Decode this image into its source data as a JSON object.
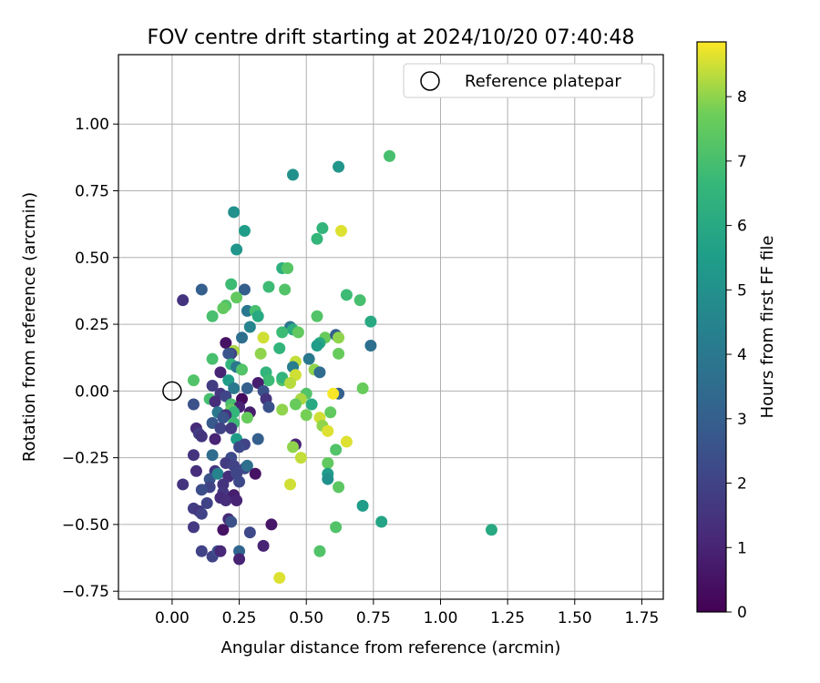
{
  "chart_data": {
    "type": "scatter",
    "title": "FOV centre drift starting at 2024/10/20 07:40:48",
    "xlabel": "Angular distance from reference (arcmin)",
    "ylabel": "Rotation from reference (arcmin)",
    "xlim": [
      -0.2,
      1.83
    ],
    "ylim": [
      -0.78,
      1.26
    ],
    "xticks": [
      0.0,
      0.25,
      0.5,
      0.75,
      1.0,
      1.25,
      1.5,
      1.75
    ],
    "xtick_labels": [
      "0.00",
      "0.25",
      "0.50",
      "0.75",
      "1.00",
      "1.25",
      "1.50",
      "1.75"
    ],
    "yticks": [
      -0.75,
      -0.5,
      -0.25,
      0.0,
      0.25,
      0.5,
      0.75,
      1.0
    ],
    "ytick_labels": [
      "−0.75",
      "−0.50",
      "−0.25",
      "0.00",
      "0.25",
      "0.50",
      "0.75",
      "1.00"
    ],
    "grid": true,
    "legend_position": "top-right",
    "legend_label": "Reference platepar",
    "reference_point": {
      "x": 0.0,
      "y": 0.0
    },
    "colorbar": {
      "label": "Hours from first FF file",
      "colormap": "viridis",
      "range": [
        0,
        8.85
      ],
      "ticks": [
        0,
        1,
        2,
        3,
        4,
        5,
        6,
        7,
        8
      ],
      "tick_labels": [
        "0",
        "1",
        "2",
        "3",
        "4",
        "5",
        "6",
        "7",
        "8"
      ]
    },
    "points": [
      {
        "x": 0.04,
        "y": 0.34,
        "c": 1.5
      },
      {
        "x": 0.11,
        "y": 0.38,
        "c": 3.0
      },
      {
        "x": 0.23,
        "y": 0.67,
        "c": 5.0
      },
      {
        "x": 0.27,
        "y": 0.6,
        "c": 5.5
      },
      {
        "x": 0.24,
        "y": 0.53,
        "c": 5.2
      },
      {
        "x": 0.45,
        "y": 0.81,
        "c": 5.0
      },
      {
        "x": 0.62,
        "y": 0.84,
        "c": 5.2
      },
      {
        "x": 0.81,
        "y": 0.88,
        "c": 7.0
      },
      {
        "x": 0.56,
        "y": 0.61,
        "c": 6.5
      },
      {
        "x": 0.63,
        "y": 0.6,
        "c": 8.6
      },
      {
        "x": 0.54,
        "y": 0.57,
        "c": 6.6
      },
      {
        "x": 0.41,
        "y": 0.46,
        "c": 6.3
      },
      {
        "x": 0.43,
        "y": 0.46,
        "c": 7.3
      },
      {
        "x": 0.22,
        "y": 0.4,
        "c": 6.8
      },
      {
        "x": 0.27,
        "y": 0.38,
        "c": 3.0
      },
      {
        "x": 0.36,
        "y": 0.39,
        "c": 6.8
      },
      {
        "x": 0.42,
        "y": 0.38,
        "c": 7.2
      },
      {
        "x": 0.65,
        "y": 0.36,
        "c": 6.8
      },
      {
        "x": 0.7,
        "y": 0.34,
        "c": 7.0
      },
      {
        "x": 0.24,
        "y": 0.35,
        "c": 7.5
      },
      {
        "x": 0.2,
        "y": 0.32,
        "c": 7.2
      },
      {
        "x": 0.19,
        "y": 0.31,
        "c": 7.5
      },
      {
        "x": 0.28,
        "y": 0.3,
        "c": 4.0
      },
      {
        "x": 0.31,
        "y": 0.3,
        "c": 7.0
      },
      {
        "x": 0.32,
        "y": 0.28,
        "c": 6.0
      },
      {
        "x": 0.15,
        "y": 0.28,
        "c": 7.0
      },
      {
        "x": 0.54,
        "y": 0.28,
        "c": 7.2
      },
      {
        "x": 0.74,
        "y": 0.26,
        "c": 6.0
      },
      {
        "x": 0.29,
        "y": 0.24,
        "c": 4.5
      },
      {
        "x": 0.26,
        "y": 0.2,
        "c": 3.6
      },
      {
        "x": 0.44,
        "y": 0.24,
        "c": 4.0
      },
      {
        "x": 0.45,
        "y": 0.23,
        "c": 6.2
      },
      {
        "x": 0.47,
        "y": 0.22,
        "c": 7.5
      },
      {
        "x": 0.41,
        "y": 0.22,
        "c": 6.8
      },
      {
        "x": 0.34,
        "y": 0.2,
        "c": 8.5
      },
      {
        "x": 0.57,
        "y": 0.2,
        "c": 7.6
      },
      {
        "x": 0.61,
        "y": 0.21,
        "c": 3.0
      },
      {
        "x": 0.62,
        "y": 0.2,
        "c": 8.0
      },
      {
        "x": 0.55,
        "y": 0.18,
        "c": 6.0
      },
      {
        "x": 0.2,
        "y": 0.18,
        "c": 0.5
      },
      {
        "x": 0.4,
        "y": 0.16,
        "c": 6.5
      },
      {
        "x": 0.74,
        "y": 0.17,
        "c": 3.6
      },
      {
        "x": 0.54,
        "y": 0.17,
        "c": 5.5
      },
      {
        "x": 0.23,
        "y": 0.15,
        "c": 8.2
      },
      {
        "x": 0.22,
        "y": 0.14,
        "c": 2.0
      },
      {
        "x": 0.21,
        "y": 0.14,
        "c": 2.6
      },
      {
        "x": 0.33,
        "y": 0.14,
        "c": 8.0
      },
      {
        "x": 0.62,
        "y": 0.14,
        "c": 7.6
      },
      {
        "x": 0.15,
        "y": 0.12,
        "c": 7.0
      },
      {
        "x": 0.51,
        "y": 0.12,
        "c": 4.0
      },
      {
        "x": 0.22,
        "y": 0.1,
        "c": 6.5
      },
      {
        "x": 0.46,
        "y": 0.11,
        "c": 8.4
      },
      {
        "x": 0.24,
        "y": 0.09,
        "c": 4.0
      },
      {
        "x": 0.26,
        "y": 0.08,
        "c": 7.2
      },
      {
        "x": 0.45,
        "y": 0.09,
        "c": 4.2
      },
      {
        "x": 0.53,
        "y": 0.08,
        "c": 8.0
      },
      {
        "x": 0.55,
        "y": 0.07,
        "c": 3.5
      },
      {
        "x": 0.18,
        "y": 0.07,
        "c": 1.0
      },
      {
        "x": 0.35,
        "y": 0.07,
        "c": 6.5
      },
      {
        "x": 0.46,
        "y": 0.06,
        "c": 8.5
      },
      {
        "x": 0.08,
        "y": 0.04,
        "c": 7.2
      },
      {
        "x": 0.21,
        "y": 0.04,
        "c": 5.5
      },
      {
        "x": 0.36,
        "y": 0.04,
        "c": 6.8
      },
      {
        "x": 0.41,
        "y": 0.04,
        "c": 7.2
      },
      {
        "x": 0.41,
        "y": 0.05,
        "c": 6.5
      },
      {
        "x": 0.32,
        "y": 0.03,
        "c": 0.8
      },
      {
        "x": 0.44,
        "y": 0.03,
        "c": 8.3
      },
      {
        "x": 0.15,
        "y": 0.02,
        "c": 1.8
      },
      {
        "x": 0.28,
        "y": 0.01,
        "c": 3.0
      },
      {
        "x": 0.23,
        "y": 0.01,
        "c": 4.0
      },
      {
        "x": 0.34,
        "y": 0.0,
        "c": 2.5
      },
      {
        "x": 0.5,
        "y": -0.01,
        "c": 7.2
      },
      {
        "x": 0.62,
        "y": -0.01,
        "c": 3.0
      },
      {
        "x": 0.6,
        "y": -0.01,
        "c": 8.8
      },
      {
        "x": 0.18,
        "y": -0.01,
        "c": 1.6
      },
      {
        "x": 0.2,
        "y": -0.02,
        "c": 2.1
      },
      {
        "x": 0.14,
        "y": -0.03,
        "c": 7.0
      },
      {
        "x": 0.26,
        "y": -0.03,
        "c": 0.3
      },
      {
        "x": 0.35,
        "y": -0.03,
        "c": 1.5
      },
      {
        "x": 0.48,
        "y": -0.03,
        "c": 8.2
      },
      {
        "x": 0.16,
        "y": -0.04,
        "c": 1.3
      },
      {
        "x": 0.22,
        "y": -0.05,
        "c": 7.0
      },
      {
        "x": 0.46,
        "y": -0.05,
        "c": 7.6
      },
      {
        "x": 0.52,
        "y": -0.05,
        "c": 6.0
      },
      {
        "x": 0.08,
        "y": -0.05,
        "c": 2.5
      },
      {
        "x": 0.25,
        "y": -0.06,
        "c": 1.0
      },
      {
        "x": 0.36,
        "y": -0.06,
        "c": 2.5
      },
      {
        "x": 0.41,
        "y": -0.07,
        "c": 8.0
      },
      {
        "x": 0.22,
        "y": -0.07,
        "c": 7.5
      },
      {
        "x": 0.17,
        "y": -0.08,
        "c": 4.0
      },
      {
        "x": 0.23,
        "y": -0.08,
        "c": 6.6
      },
      {
        "x": 0.29,
        "y": -0.08,
        "c": 0.8
      },
      {
        "x": 0.59,
        "y": -0.08,
        "c": 7.5
      },
      {
        "x": 0.5,
        "y": -0.09,
        "c": 7.8
      },
      {
        "x": 0.2,
        "y": -0.09,
        "c": 1.5
      },
      {
        "x": 0.19,
        "y": -0.1,
        "c": 2.6
      },
      {
        "x": 0.28,
        "y": -0.1,
        "c": 7.6
      },
      {
        "x": 0.55,
        "y": -0.1,
        "c": 8.5
      },
      {
        "x": 0.15,
        "y": -0.12,
        "c": 2.8
      },
      {
        "x": 0.23,
        "y": -0.12,
        "c": 6.8
      },
      {
        "x": 0.56,
        "y": -0.13,
        "c": 8.0
      },
      {
        "x": 0.09,
        "y": -0.14,
        "c": 1.2
      },
      {
        "x": 0.18,
        "y": -0.14,
        "c": 2.0
      },
      {
        "x": 0.22,
        "y": -0.14,
        "c": 1.7
      },
      {
        "x": 0.58,
        "y": -0.15,
        "c": 8.6
      },
      {
        "x": 0.1,
        "y": -0.16,
        "c": 1.8
      },
      {
        "x": 0.11,
        "y": -0.17,
        "c": 1.5
      },
      {
        "x": 0.24,
        "y": -0.18,
        "c": 5.5
      },
      {
        "x": 0.32,
        "y": -0.18,
        "c": 3.0
      },
      {
        "x": 0.65,
        "y": -0.19,
        "c": 8.6
      },
      {
        "x": 0.16,
        "y": -0.18,
        "c": 1.0
      },
      {
        "x": 0.27,
        "y": -0.2,
        "c": 2.0
      },
      {
        "x": 0.46,
        "y": -0.2,
        "c": 1.0
      },
      {
        "x": 0.45,
        "y": -0.21,
        "c": 8.0
      },
      {
        "x": 0.25,
        "y": -0.21,
        "c": 2.2
      },
      {
        "x": 0.61,
        "y": -0.22,
        "c": 7.2
      },
      {
        "x": 0.15,
        "y": -0.24,
        "c": 3.5
      },
      {
        "x": 0.08,
        "y": -0.24,
        "c": 1.5
      },
      {
        "x": 0.22,
        "y": -0.25,
        "c": 2.3
      },
      {
        "x": 0.48,
        "y": -0.25,
        "c": 8.4
      },
      {
        "x": 0.04,
        "y": -0.35,
        "c": 1.5
      },
      {
        "x": 0.16,
        "y": -0.3,
        "c": 1.5
      },
      {
        "x": 0.2,
        "y": -0.27,
        "c": 1.8
      },
      {
        "x": 0.23,
        "y": -0.28,
        "c": 2.0
      },
      {
        "x": 0.27,
        "y": -0.29,
        "c": 2.3
      },
      {
        "x": 0.28,
        "y": -0.28,
        "c": 3.6
      },
      {
        "x": 0.31,
        "y": -0.31,
        "c": 0.5
      },
      {
        "x": 0.09,
        "y": -0.3,
        "c": 1.3
      },
      {
        "x": 0.14,
        "y": -0.33,
        "c": 2.6
      },
      {
        "x": 0.17,
        "y": -0.31,
        "c": 4.5
      },
      {
        "x": 0.21,
        "y": -0.32,
        "c": 1.3
      },
      {
        "x": 0.24,
        "y": -0.31,
        "c": 2.1
      },
      {
        "x": 0.19,
        "y": -0.35,
        "c": 1.5
      },
      {
        "x": 0.25,
        "y": -0.34,
        "c": 2.2
      },
      {
        "x": 0.14,
        "y": -0.36,
        "c": 2.0
      },
      {
        "x": 0.11,
        "y": -0.37,
        "c": 2.4
      },
      {
        "x": 0.19,
        "y": -0.38,
        "c": 1.6
      },
      {
        "x": 0.23,
        "y": -0.39,
        "c": 0.8
      },
      {
        "x": 0.18,
        "y": -0.4,
        "c": 1.2
      },
      {
        "x": 0.2,
        "y": -0.41,
        "c": 1.3
      },
      {
        "x": 0.13,
        "y": -0.42,
        "c": 2.0
      },
      {
        "x": 0.24,
        "y": -0.41,
        "c": 1.0
      },
      {
        "x": 0.08,
        "y": -0.44,
        "c": 1.8
      },
      {
        "x": 0.1,
        "y": -0.45,
        "c": 1.6
      },
      {
        "x": 0.11,
        "y": -0.46,
        "c": 2.0
      },
      {
        "x": 0.21,
        "y": -0.48,
        "c": 1.2
      },
      {
        "x": 0.22,
        "y": -0.49,
        "c": 2.5
      },
      {
        "x": 0.37,
        "y": -0.5,
        "c": 0.6
      },
      {
        "x": 0.08,
        "y": -0.51,
        "c": 1.7
      },
      {
        "x": 0.19,
        "y": -0.52,
        "c": 0.5
      },
      {
        "x": 0.29,
        "y": -0.53,
        "c": 2.2
      },
      {
        "x": 0.44,
        "y": -0.35,
        "c": 8.5
      },
      {
        "x": 0.58,
        "y": -0.27,
        "c": 7.5
      },
      {
        "x": 0.58,
        "y": -0.31,
        "c": 5.5
      },
      {
        "x": 0.58,
        "y": -0.33,
        "c": 5.0
      },
      {
        "x": 0.62,
        "y": -0.36,
        "c": 7.4
      },
      {
        "x": 0.61,
        "y": -0.51,
        "c": 7.2
      },
      {
        "x": 0.71,
        "y": -0.43,
        "c": 5.5
      },
      {
        "x": 0.78,
        "y": -0.49,
        "c": 5.8
      },
      {
        "x": 1.19,
        "y": -0.52,
        "c": 6.0
      },
      {
        "x": 0.55,
        "y": -0.6,
        "c": 7.2
      },
      {
        "x": 0.34,
        "y": -0.58,
        "c": 1.0
      },
      {
        "x": 0.11,
        "y": -0.6,
        "c": 2.0
      },
      {
        "x": 0.15,
        "y": -0.62,
        "c": 2.0
      },
      {
        "x": 0.17,
        "y": -0.6,
        "c": 2.4
      },
      {
        "x": 0.18,
        "y": -0.6,
        "c": 1.1
      },
      {
        "x": 0.25,
        "y": -0.6,
        "c": 3.2
      },
      {
        "x": 0.25,
        "y": -0.63,
        "c": 1.0
      },
      {
        "x": 0.4,
        "y": -0.7,
        "c": 8.6
      },
      {
        "x": 0.71,
        "y": 0.01,
        "c": 7.6
      }
    ]
  }
}
